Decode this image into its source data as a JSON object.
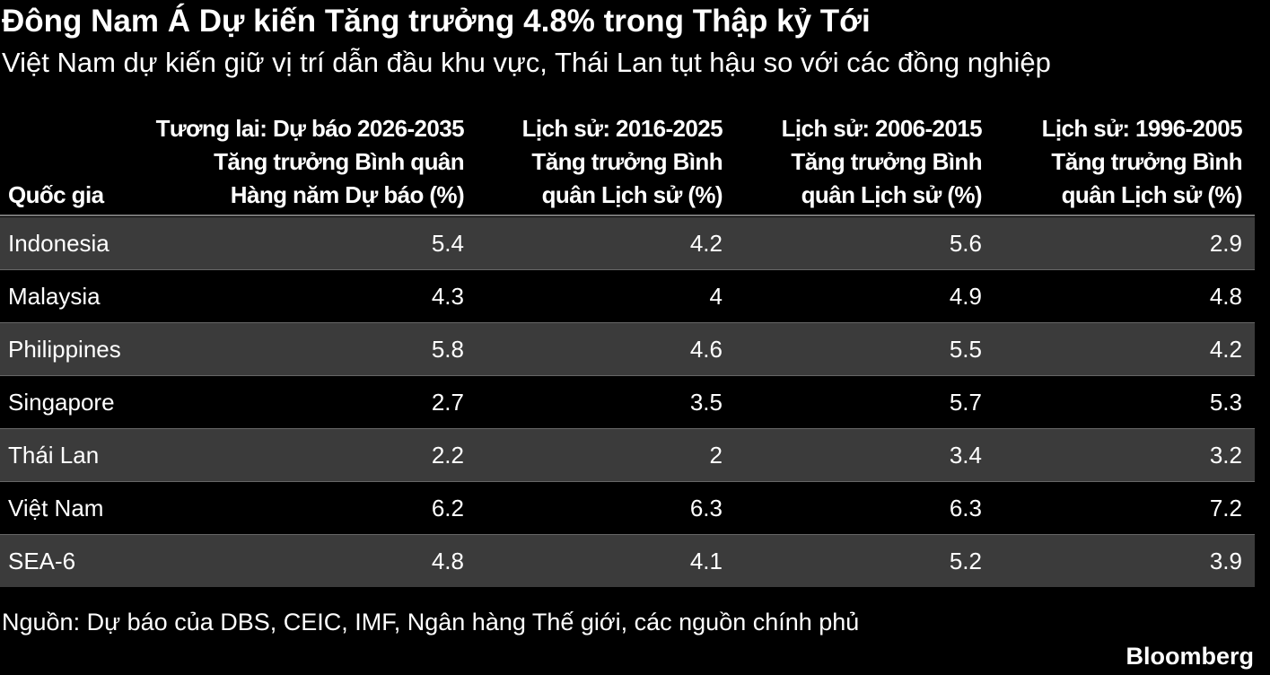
{
  "header": {
    "title": "Đông Nam Á Dự kiến Tăng trưởng 4.8% trong Thập kỷ Tới",
    "subtitle": "Việt Nam dự kiến giữ vị trí dẫn đầu khu vực, Thái Lan tụt hậu so với các đồng nghiệp"
  },
  "table": {
    "columns": [
      [
        "Quốc gia"
      ],
      [
        "Tương lai: Dự báo 2026-2035",
        "Tăng trưởng Bình quân",
        "Hàng năm Dự báo (%)"
      ],
      [
        "Lịch sử: 2016-2025",
        "Tăng trưởng Bình",
        "quân Lịch sử (%)"
      ],
      [
        "Lịch sử: 2006-2015",
        "Tăng trưởng Bình",
        "quân Lịch sử (%)"
      ],
      [
        "Lịch sử: 1996-2005",
        "Tăng trưởng Bình",
        "quân Lịch sử (%)"
      ]
    ],
    "rows": [
      [
        "Indonesia",
        5.4,
        4.2,
        5.6,
        2.9
      ],
      [
        "Malaysia",
        4.3,
        4,
        4.9,
        4.8
      ],
      [
        "Philippines",
        5.8,
        4.6,
        5.5,
        4.2
      ],
      [
        "Singapore",
        2.7,
        3.5,
        5.7,
        5.3
      ],
      [
        "Thái Lan",
        2.2,
        2,
        3.4,
        3.2
      ],
      [
        "Việt Nam",
        6.2,
        6.3,
        6.3,
        7.2
      ],
      [
        "SEA-6",
        4.8,
        4.1,
        5.2,
        3.9
      ]
    ]
  },
  "footer": {
    "source": "Nguồn: Dự báo của DBS, CEIC, IMF, Ngân hàng Thế giới, các nguồn chính phủ",
    "brand": "Bloomberg"
  }
}
